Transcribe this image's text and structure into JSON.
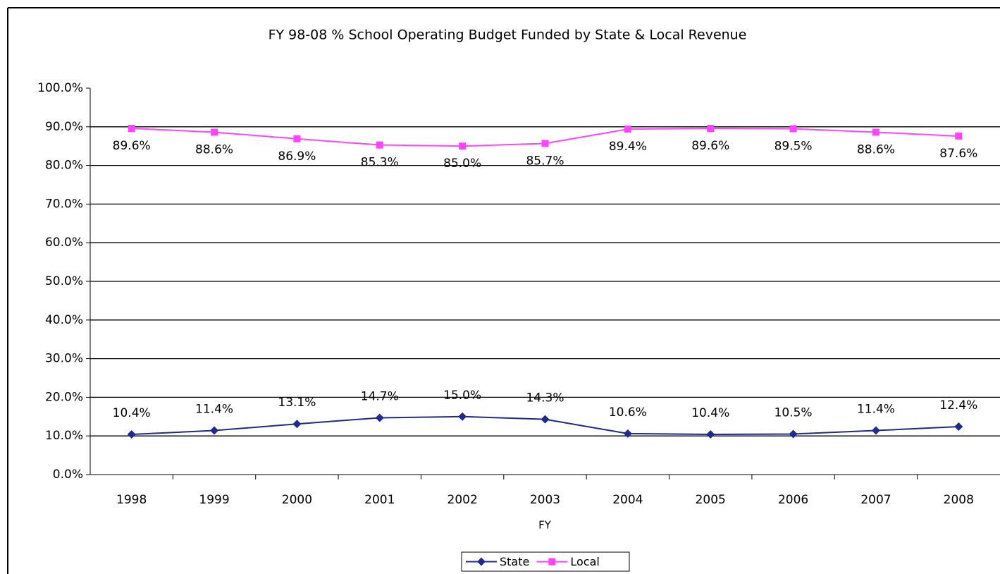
{
  "chart_data": {
    "type": "line",
    "title": "FY 98-08 % School Operating Budget Funded by State & Local Revenue",
    "x_label": "FY",
    "categories": [
      "1998",
      "1999",
      "2000",
      "2001",
      "2002",
      "2003",
      "2004",
      "2005",
      "2006",
      "2007",
      "2008"
    ],
    "series": [
      {
        "name": "State",
        "color": "#1f2a8a",
        "marker": "diamond",
        "values": [
          10.4,
          11.4,
          13.1,
          14.7,
          15.0,
          14.3,
          10.6,
          10.4,
          10.5,
          11.4,
          12.4
        ],
        "value_labels": [
          "10.4%",
          "11.4%",
          "13.1%",
          "14.7%",
          "15.0%",
          "14.3%",
          "10.6%",
          "10.4%",
          "10.5%",
          "11.4%",
          "12.4%"
        ],
        "label_position": "above"
      },
      {
        "name": "Local",
        "color": "#ff44ff",
        "marker": "square",
        "values": [
          89.6,
          88.6,
          86.9,
          85.3,
          85.0,
          85.7,
          89.4,
          89.6,
          89.5,
          88.6,
          87.6
        ],
        "value_labels": [
          "89.6%",
          "88.6%",
          "86.9%",
          "85.3%",
          "85.0%",
          "85.7%",
          "89.4%",
          "89.6%",
          "89.5%",
          "88.6%",
          "87.6%"
        ],
        "label_position": "below"
      }
    ],
    "ylim": [
      0,
      100
    ],
    "yticks": [
      {
        "value": 0,
        "label": "0.0%"
      },
      {
        "value": 10,
        "label": "10.0%"
      },
      {
        "value": 20,
        "label": "20.0%"
      },
      {
        "value": 30,
        "label": "30.0%"
      },
      {
        "value": 40,
        "label": "40.0%"
      },
      {
        "value": 50,
        "label": "50.0%"
      },
      {
        "value": 60,
        "label": "60.0%"
      },
      {
        "value": 70,
        "label": "70.0%"
      },
      {
        "value": 80,
        "label": "80.0%"
      },
      {
        "value": 90,
        "label": "90.0%"
      },
      {
        "value": 100,
        "label": "100.0%"
      }
    ],
    "grid": true,
    "legend": "bottom"
  }
}
